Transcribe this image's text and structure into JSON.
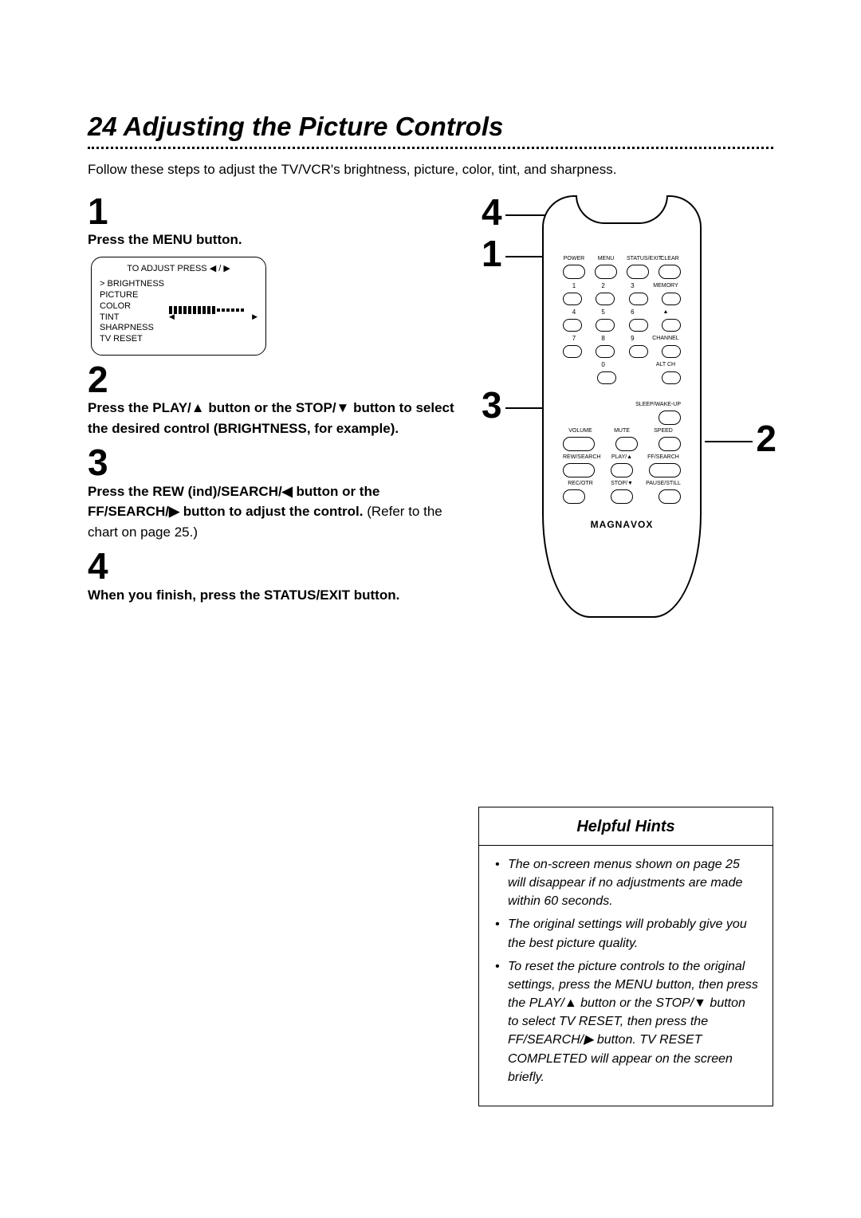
{
  "title_prefix": "24",
  "title_text": "Adjusting the Picture Controls",
  "intro": "Follow these steps to adjust the TV/VCR's brightness, picture, color, tint, and sharpness.",
  "step1": {
    "num": "1",
    "text_bold": "Press the MENU button."
  },
  "osd": {
    "header": "TO ADJUST PRESS ◀ / ▶",
    "items": [
      "> BRIGHTNESS",
      "  PICTURE",
      "  COLOR",
      "  TINT",
      "  SHARPNESS",
      "  TV RESET"
    ],
    "bar_filled": 10,
    "bar_total": 16,
    "left_arrow": "◀",
    "right_arrow": "▶"
  },
  "step2": {
    "num": "2",
    "bold": "Press the PLAY/▲ button or the STOP/▼ button to select the desired control (BRIGHTNESS, for example)."
  },
  "step3": {
    "num": "3",
    "bold": "Press the REW (ind)/SEARCH/◀ button or the FF/SEARCH/▶ button to adjust the control.",
    "rest": " (Refer to the chart on page 25.)"
  },
  "step4": {
    "num": "4",
    "bold": "When you finish, press the STATUS/EXIT button."
  },
  "remote": {
    "top_labels": [
      "POWER",
      "MENU",
      "STATUS/EXIT",
      "CLEAR"
    ],
    "num_labels": [
      [
        "1",
        "2",
        "3"
      ],
      [
        "4",
        "5",
        "6"
      ],
      [
        "7",
        "8",
        "9"
      ]
    ],
    "right_small": [
      "MEMORY",
      "",
      "CHANNEL"
    ],
    "row0": "0",
    "altch": "ALT CH",
    "sleep": "SLEEP/WAKE-UP",
    "row_vol": [
      "VOLUME",
      "MUTE",
      "SPEED"
    ],
    "row_play": [
      "REW/SEARCH",
      "PLAY/▲",
      "FF/SEARCH"
    ],
    "row_rec": [
      "REC/OTR",
      "STOP/▼",
      "PAUSE/STILL"
    ],
    "brand": "MAGNAVOX"
  },
  "callouts": {
    "c4": "4",
    "c1": "1",
    "c3": "3",
    "c2": "2"
  },
  "hints": {
    "title": "Helpful Hints",
    "items": [
      "The on-screen menus shown on page 25 will disappear if no adjustments are made within 60 seconds.",
      "The original settings will probably give you the best picture quality.",
      "To reset the picture controls to the original settings, press the MENU button, then press the PLAY/▲ button or the STOP/▼ button to select TV RESET, then press the FF/SEARCH/▶ button. TV RESET COMPLETED will appear on the screen briefly."
    ]
  },
  "colors": {
    "text": "#000000",
    "bg": "#ffffff"
  }
}
